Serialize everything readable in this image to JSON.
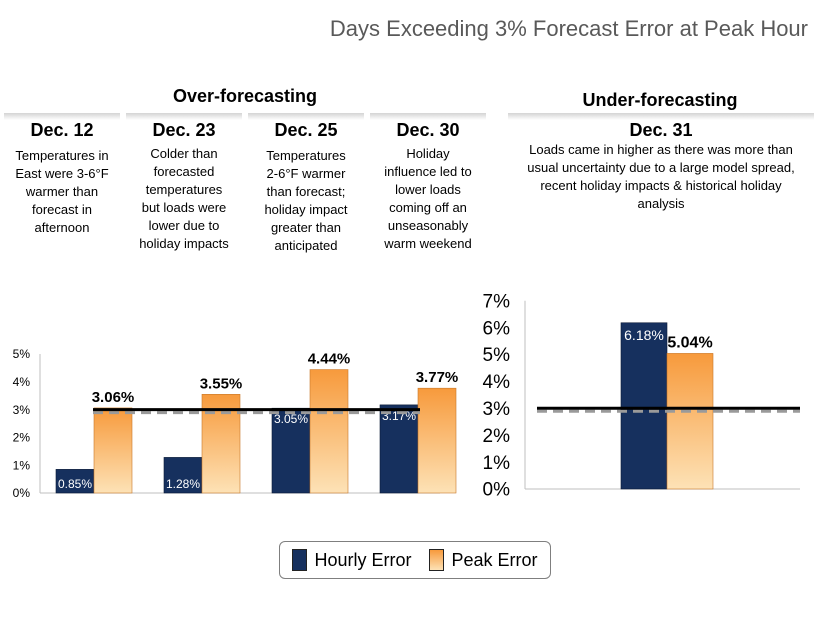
{
  "title": "Days Exceeding 3% Forecast Error at Peak Hour",
  "groups": {
    "over": "Over-forecasting",
    "under": "Under-forecasting"
  },
  "events": [
    {
      "date": "Dec. 12",
      "desc": [
        "Temperatures in",
        "East were 3-6°F",
        "warmer than",
        "forecast in",
        "afternoon"
      ]
    },
    {
      "date": "Dec. 23",
      "desc": [
        "Colder than",
        "forecasted",
        "temperatures",
        "but loads were",
        "lower due to",
        "holiday impacts"
      ]
    },
    {
      "date": "Dec. 25",
      "desc": [
        "Temperatures",
        "2-6°F warmer",
        "than forecast;",
        "holiday impact",
        "greater than",
        "anticipated"
      ]
    },
    {
      "date": "Dec. 30",
      "desc": [
        "Holiday",
        "influence led to",
        "lower loads",
        "coming off an",
        "unseasonably",
        "warm weekend"
      ]
    },
    {
      "date": "Dec. 31",
      "desc": [
        "Loads came in higher as there was more than",
        "usual uncertainty due to a large model spread,",
        "recent holiday impacts & historical holiday",
        "analysis"
      ]
    }
  ],
  "legend": {
    "hourly": "Hourly Error",
    "peak": "Peak Error"
  },
  "colors": {
    "hourly": "#16305e",
    "peak_top": "#f79a3c",
    "peak_bottom": "#fde2b6",
    "threshold": "#000000"
  },
  "chart_data": [
    {
      "type": "bar",
      "title": "Over-forecasting",
      "categories": [
        "Dec. 12",
        "Dec. 23",
        "Dec. 25",
        "Dec. 30"
      ],
      "series": [
        {
          "name": "Hourly Error",
          "values": [
            0.85,
            1.28,
            3.05,
            3.17
          ],
          "labels": [
            "0.85%",
            "1.28%",
            "3.05%",
            "3.17%"
          ]
        },
        {
          "name": "Peak Error",
          "values": [
            3.06,
            3.55,
            4.44,
            3.77
          ],
          "labels": [
            "3.06%",
            "3.55%",
            "4.44%",
            "3.77%"
          ]
        }
      ],
      "threshold": 3,
      "ylim": [
        0,
        5
      ],
      "yticks": [
        "0%",
        "1%",
        "2%",
        "3%",
        "4%",
        "5%"
      ],
      "legend": "bottom"
    },
    {
      "type": "bar",
      "title": "Under-forecasting",
      "categories": [
        "Dec. 31"
      ],
      "series": [
        {
          "name": "Hourly Error",
          "values": [
            6.18
          ],
          "labels": [
            "6.18%"
          ]
        },
        {
          "name": "Peak Error",
          "values": [
            5.04
          ],
          "labels": [
            "5.04%"
          ]
        }
      ],
      "threshold": 3,
      "ylim": [
        0,
        7
      ],
      "yticks": [
        "0%",
        "1%",
        "2%",
        "3%",
        "4%",
        "5%",
        "6%",
        "7%"
      ],
      "legend": "bottom"
    }
  ]
}
